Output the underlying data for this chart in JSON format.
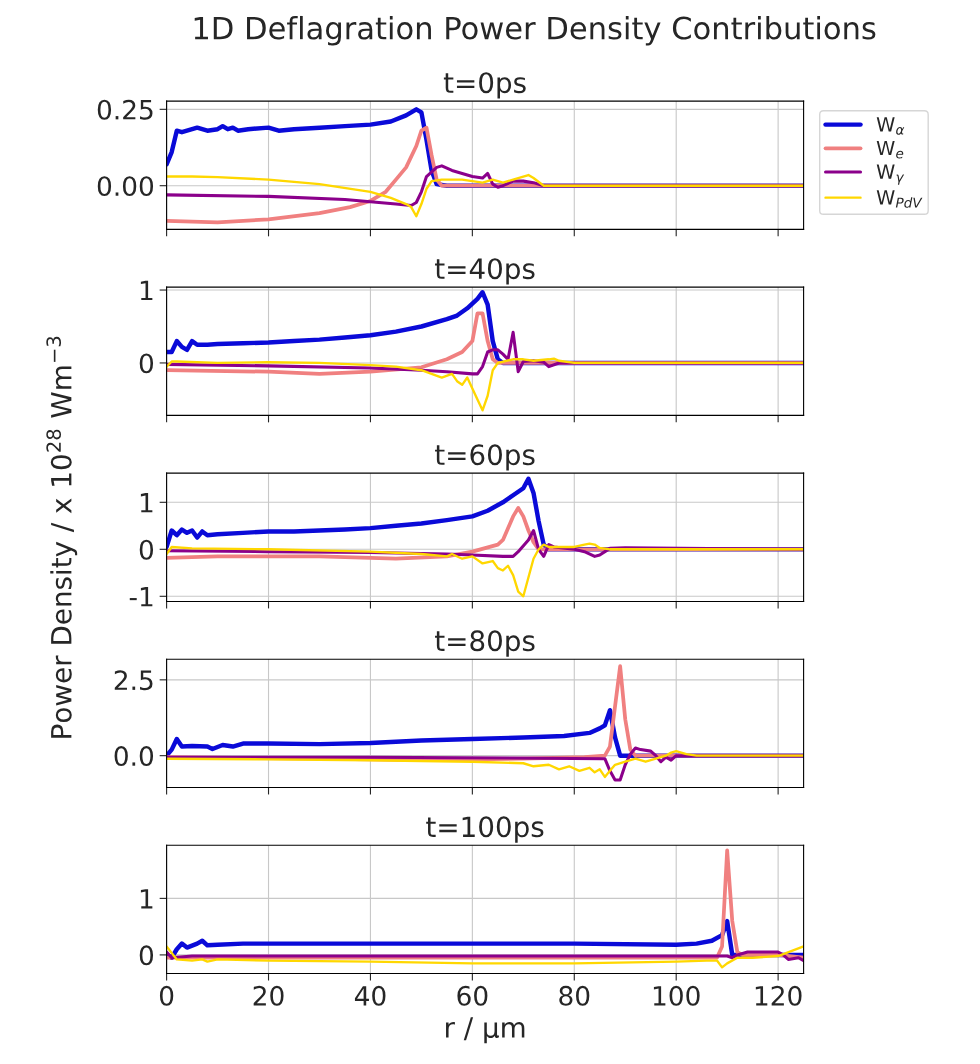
{
  "chart_data": [
    {
      "type": "line",
      "title": "1D Deflagration Power Density Contributions",
      "subtitle": "t=0ps",
      "xlim": [
        0,
        125
      ],
      "xticks": [
        0,
        20,
        40,
        60,
        80,
        100,
        120
      ],
      "ylim": [
        -0.143,
        0.277
      ],
      "yticks": [
        {
          "value": 0,
          "label": "0.00"
        },
        {
          "value": 0.25,
          "label": "0.25"
        }
      ],
      "grid": true,
      "tick_labels": "y",
      "legend": "top right",
      "series": [
        {
          "name": "W$_{α}$",
          "color": "#0a0ad8",
          "x": [
            0,
            1,
            2,
            3,
            4,
            6,
            8,
            10,
            11,
            12,
            13,
            14,
            16,
            20,
            22,
            25,
            30,
            35,
            40,
            44,
            47,
            49,
            50,
            51,
            52,
            53,
            55,
            125
          ],
          "values": [
            0.07,
            0.11,
            0.18,
            0.175,
            0.18,
            0.19,
            0.18,
            0.185,
            0.195,
            0.185,
            0.19,
            0.18,
            0.185,
            0.19,
            0.18,
            0.185,
            0.19,
            0.195,
            0.2,
            0.21,
            0.23,
            0.25,
            0.24,
            0.15,
            0.05,
            0.005,
            0,
            0
          ]
        },
        {
          "name": "W$_{e}$",
          "color": "#f08080",
          "x": [
            0,
            10,
            20,
            30,
            36,
            40,
            43,
            45,
            47,
            49,
            50,
            51,
            52,
            53,
            54,
            125
          ],
          "values": [
            -0.115,
            -0.12,
            -0.11,
            -0.09,
            -0.07,
            -0.05,
            -0.02,
            0.02,
            0.06,
            0.13,
            0.18,
            0.19,
            0.1,
            0.02,
            0,
            0
          ]
        },
        {
          "name": "W$_{γ}$",
          "color": "#8b008b",
          "x": [
            0,
            20,
            35,
            45,
            48,
            49,
            50,
            51,
            53,
            54,
            56,
            58,
            60,
            62,
            63,
            64,
            65,
            66,
            68,
            70,
            72,
            74,
            125
          ],
          "values": [
            -0.03,
            -0.035,
            -0.045,
            -0.06,
            -0.065,
            -0.055,
            -0.02,
            0.03,
            0.06,
            0.065,
            0.05,
            0.04,
            0.03,
            0.025,
            0.04,
            0.005,
            -0.005,
            0,
            0.015,
            0.015,
            0.01,
            0,
            0
          ]
        },
        {
          "name": "W$_{PdV}$",
          "color": "#ffd700",
          "x": [
            0,
            5,
            10,
            20,
            30,
            40,
            44,
            47,
            48,
            49,
            50,
            51,
            52,
            54,
            58,
            62,
            64,
            66,
            68,
            70,
            71,
            72,
            74,
            125
          ],
          "values": [
            0.03,
            0.03,
            0.028,
            0.02,
            0.005,
            -0.02,
            -0.04,
            -0.06,
            -0.07,
            -0.1,
            -0.06,
            -0.01,
            0.015,
            0.02,
            0.02,
            0.01,
            0.02,
            0.01,
            0.02,
            0.03,
            0.035,
            0.025,
            0,
            0
          ]
        }
      ]
    },
    {
      "type": "line",
      "title": "t=40ps",
      "xlim": [
        0,
        125
      ],
      "xticks": [
        0,
        20,
        40,
        60,
        80,
        100,
        120
      ],
      "ylim": [
        -0.72,
        1.04
      ],
      "yticks": [
        0,
        1
      ],
      "grid": true,
      "tick_labels": "y",
      "series": [
        {
          "color": "#0a0ad8",
          "x": [
            0,
            1,
            2,
            3,
            4,
            5,
            6,
            8,
            10,
            15,
            20,
            25,
            30,
            35,
            40,
            45,
            50,
            55,
            57,
            59,
            61,
            62,
            63,
            64,
            65,
            66,
            125
          ],
          "values": [
            0.15,
            0.15,
            0.3,
            0.22,
            0.18,
            0.3,
            0.25,
            0.25,
            0.26,
            0.27,
            0.28,
            0.3,
            0.32,
            0.35,
            0.38,
            0.43,
            0.5,
            0.6,
            0.65,
            0.75,
            0.88,
            0.97,
            0.8,
            0.3,
            0.05,
            0,
            0
          ]
        },
        {
          "color": "#f08080",
          "x": [
            0,
            20,
            30,
            40,
            50,
            55,
            58,
            60,
            61,
            62,
            63,
            64,
            65,
            125
          ],
          "values": [
            -0.1,
            -0.12,
            -0.15,
            -0.12,
            -0.06,
            0.05,
            0.15,
            0.3,
            0.68,
            0.68,
            0.3,
            0.05,
            0,
            0
          ]
        },
        {
          "color": "#8b008b",
          "x": [
            0,
            20,
            40,
            50,
            55,
            60,
            61,
            62,
            63,
            64,
            65,
            66,
            67,
            68,
            69,
            70,
            72,
            74,
            75,
            77,
            80,
            125
          ],
          "values": [
            -0.02,
            -0.04,
            -0.07,
            -0.1,
            -0.12,
            -0.15,
            -0.15,
            -0.05,
            0.15,
            0.18,
            0.18,
            0.12,
            0.05,
            0.42,
            -0.12,
            0.02,
            0.03,
            0.01,
            -0.05,
            0,
            0,
            0
          ]
        },
        {
          "color": "#ffd700",
          "x": [
            0,
            1,
            2,
            10,
            20,
            30,
            40,
            45,
            50,
            52,
            54,
            56,
            57,
            58,
            59,
            60,
            61,
            62,
            63,
            64,
            65,
            68,
            70,
            72,
            75,
            76,
            77,
            80,
            125
          ],
          "values": [
            -0.05,
            0.02,
            0.02,
            0,
            0.01,
            0,
            -0.03,
            -0.05,
            -0.1,
            -0.15,
            -0.2,
            -0.15,
            -0.25,
            -0.3,
            -0.2,
            -0.35,
            -0.5,
            -0.65,
            -0.45,
            -0.1,
            0,
            0.05,
            0.05,
            0.03,
            0.05,
            0.06,
            0.03,
            0,
            0
          ]
        }
      ]
    },
    {
      "type": "line",
      "title": "t=60ps",
      "ylabel": "Power Density / x 10$^{28}$ Wm$^{−3}$",
      "xlim": [
        0,
        125
      ],
      "xticks": [
        0,
        20,
        40,
        60,
        80,
        100,
        120
      ],
      "ylim": [
        -1.11,
        1.62
      ],
      "yticks": [
        -1,
        0,
        1
      ],
      "grid": true,
      "tick_labels": "y",
      "series": [
        {
          "color": "#0a0ad8",
          "x": [
            0,
            1,
            2,
            3,
            4,
            5,
            6,
            7,
            8,
            10,
            15,
            20,
            25,
            30,
            35,
            40,
            45,
            50,
            55,
            60,
            63,
            66,
            68,
            70,
            71,
            72,
            73,
            74,
            75,
            125
          ],
          "values": [
            0.05,
            0.4,
            0.3,
            0.42,
            0.35,
            0.4,
            0.25,
            0.38,
            0.3,
            0.32,
            0.35,
            0.38,
            0.38,
            0.4,
            0.42,
            0.45,
            0.5,
            0.55,
            0.62,
            0.7,
            0.82,
            1.0,
            1.15,
            1.3,
            1.5,
            1.2,
            0.6,
            0.1,
            0,
            0
          ]
        },
        {
          "color": "#f08080",
          "x": [
            0,
            10,
            30,
            45,
            55,
            60,
            65,
            66,
            67,
            68,
            69,
            70,
            71,
            72,
            73,
            125
          ],
          "values": [
            -0.18,
            -0.15,
            -0.15,
            -0.2,
            -0.15,
            -0.05,
            0.1,
            0.2,
            0.45,
            0.7,
            0.88,
            0.7,
            0.4,
            0.15,
            0,
            0
          ]
        },
        {
          "color": "#8b008b",
          "x": [
            0,
            20,
            40,
            55,
            60,
            66,
            68,
            69,
            71,
            72,
            73,
            74,
            75,
            76,
            80,
            82,
            84,
            85,
            86,
            87,
            90,
            125
          ],
          "values": [
            -0.03,
            -0.05,
            -0.07,
            -0.1,
            -0.12,
            -0.15,
            -0.15,
            -0.05,
            0.2,
            0.4,
            0,
            -0.15,
            0.1,
            0.05,
            0,
            -0.05,
            -0.15,
            -0.12,
            -0.05,
            0.02,
            0.03,
            0
          ]
        },
        {
          "color": "#ffd700",
          "x": [
            0,
            1,
            5,
            20,
            40,
            50,
            55,
            56,
            58,
            60,
            62,
            64,
            65,
            66,
            67,
            68,
            69,
            70,
            71,
            72,
            73,
            74,
            75,
            80,
            82,
            83,
            84,
            85,
            87,
            125
          ],
          "values": [
            -0.1,
            0.05,
            0.02,
            0,
            -0.05,
            -0.1,
            -0.15,
            -0.1,
            -0.2,
            -0.15,
            -0.3,
            -0.25,
            -0.4,
            -0.45,
            -0.35,
            -0.55,
            -0.9,
            -1.0,
            -0.6,
            -0.2,
            0,
            0.1,
            0.05,
            0.05,
            0.1,
            0.12,
            0.1,
            0.03,
            0,
            0
          ]
        }
      ]
    },
    {
      "type": "line",
      "title": "t=80ps",
      "xlim": [
        0,
        125
      ],
      "xticks": [
        0,
        20,
        40,
        60,
        80,
        100,
        120
      ],
      "ylim": [
        -1.05,
        3.18
      ],
      "yticks": [
        {
          "value": 0,
          "label": "0.0"
        },
        {
          "value": 2.5,
          "label": "2.5"
        }
      ],
      "grid": true,
      "tick_labels": "y",
      "series": [
        {
          "color": "#0a0ad8",
          "x": [
            0,
            1,
            2,
            3,
            5,
            8,
            9,
            11,
            13,
            15,
            20,
            30,
            40,
            50,
            60,
            70,
            78,
            83,
            85,
            86,
            87,
            88,
            89,
            125
          ],
          "values": [
            0,
            0.2,
            0.55,
            0.3,
            0.32,
            0.3,
            0.22,
            0.35,
            0.3,
            0.4,
            0.4,
            0.38,
            0.42,
            0.5,
            0.55,
            0.6,
            0.65,
            0.75,
            0.9,
            1.0,
            1.5,
            0.6,
            0,
            0
          ]
        },
        {
          "color": "#f08080",
          "x": [
            0,
            30,
            50,
            70,
            82,
            86,
            87,
            89,
            90,
            91,
            92,
            125
          ],
          "values": [
            -0.05,
            -0.1,
            -0.15,
            -0.1,
            -0.05,
            0,
            0.3,
            2.95,
            1.2,
            0.2,
            0,
            0
          ]
        },
        {
          "color": "#8b008b",
          "x": [
            0,
            40,
            86,
            87,
            88,
            89,
            90,
            91,
            92,
            93,
            95,
            96,
            97,
            98,
            99,
            100,
            125
          ],
          "values": [
            -0.05,
            -0.05,
            -0.1,
            -0.5,
            -0.8,
            -0.8,
            -0.3,
            0.05,
            0.25,
            0.2,
            0.15,
            0,
            -0.2,
            -0.05,
            -0.15,
            0,
            0
          ]
        },
        {
          "color": "#ffd700",
          "x": [
            0,
            20,
            40,
            60,
            70,
            72,
            75,
            77,
            79,
            81,
            83,
            84,
            85,
            86,
            87,
            88,
            90,
            92,
            94,
            96,
            98,
            99,
            100,
            102,
            104,
            125
          ],
          "values": [
            -0.1,
            -0.12,
            -0.15,
            -0.2,
            -0.25,
            -0.35,
            -0.3,
            -0.45,
            -0.35,
            -0.5,
            -0.4,
            -0.55,
            -0.45,
            -0.7,
            -0.5,
            -0.3,
            -0.2,
            -0.1,
            -0.2,
            -0.1,
            0,
            0.1,
            0.15,
            0.05,
            0,
            0
          ]
        }
      ]
    },
    {
      "type": "line",
      "title": "t=100ps",
      "xlabel": "r / µm",
      "xlim": [
        0,
        125
      ],
      "xticks": [
        0,
        20,
        40,
        60,
        80,
        100,
        120
      ],
      "ylim": [
        -0.33,
        1.94
      ],
      "yticks": [
        0,
        1
      ],
      "grid": true,
      "series": [
        {
          "color": "#0a0ad8",
          "x": [
            0,
            1,
            2,
            3,
            4,
            6,
            7,
            8,
            10,
            15,
            20,
            40,
            60,
            80,
            100,
            104,
            107,
            109,
            110,
            111,
            125
          ],
          "values": [
            0,
            -0.05,
            0.1,
            0.2,
            0.13,
            0.2,
            0.25,
            0.17,
            0.18,
            0.2,
            0.2,
            0.2,
            0.2,
            0.2,
            0.18,
            0.2,
            0.25,
            0.35,
            0.6,
            0,
            0
          ]
        },
        {
          "color": "#f08080",
          "x": [
            0,
            50,
            100,
            108,
            109,
            110,
            111,
            112,
            113,
            120,
            125
          ],
          "values": [
            -0.05,
            -0.05,
            -0.05,
            -0.05,
            0.15,
            1.85,
            0.6,
            0.05,
            0,
            0,
            -0.05
          ]
        },
        {
          "color": "#8b008b",
          "x": [
            0,
            1,
            5,
            110,
            111,
            112,
            114,
            120,
            121,
            122,
            124,
            125
          ],
          "values": [
            0.05,
            -0.05,
            -0.02,
            -0.02,
            -0.05,
            0,
            0.05,
            0.05,
            0,
            -0.08,
            -0.05,
            -0.1
          ]
        },
        {
          "color": "#ffd700",
          "x": [
            0,
            2,
            5,
            7,
            8,
            10,
            20,
            40,
            60,
            80,
            100,
            106,
            108,
            109,
            110,
            112,
            115,
            120,
            125
          ],
          "values": [
            0.15,
            -0.08,
            -0.1,
            -0.08,
            -0.12,
            -0.08,
            -0.1,
            -0.12,
            -0.15,
            -0.15,
            -0.12,
            -0.1,
            -0.1,
            -0.22,
            -0.15,
            -0.05,
            -0.05,
            -0.02,
            0.15
          ]
        }
      ]
    }
  ]
}
